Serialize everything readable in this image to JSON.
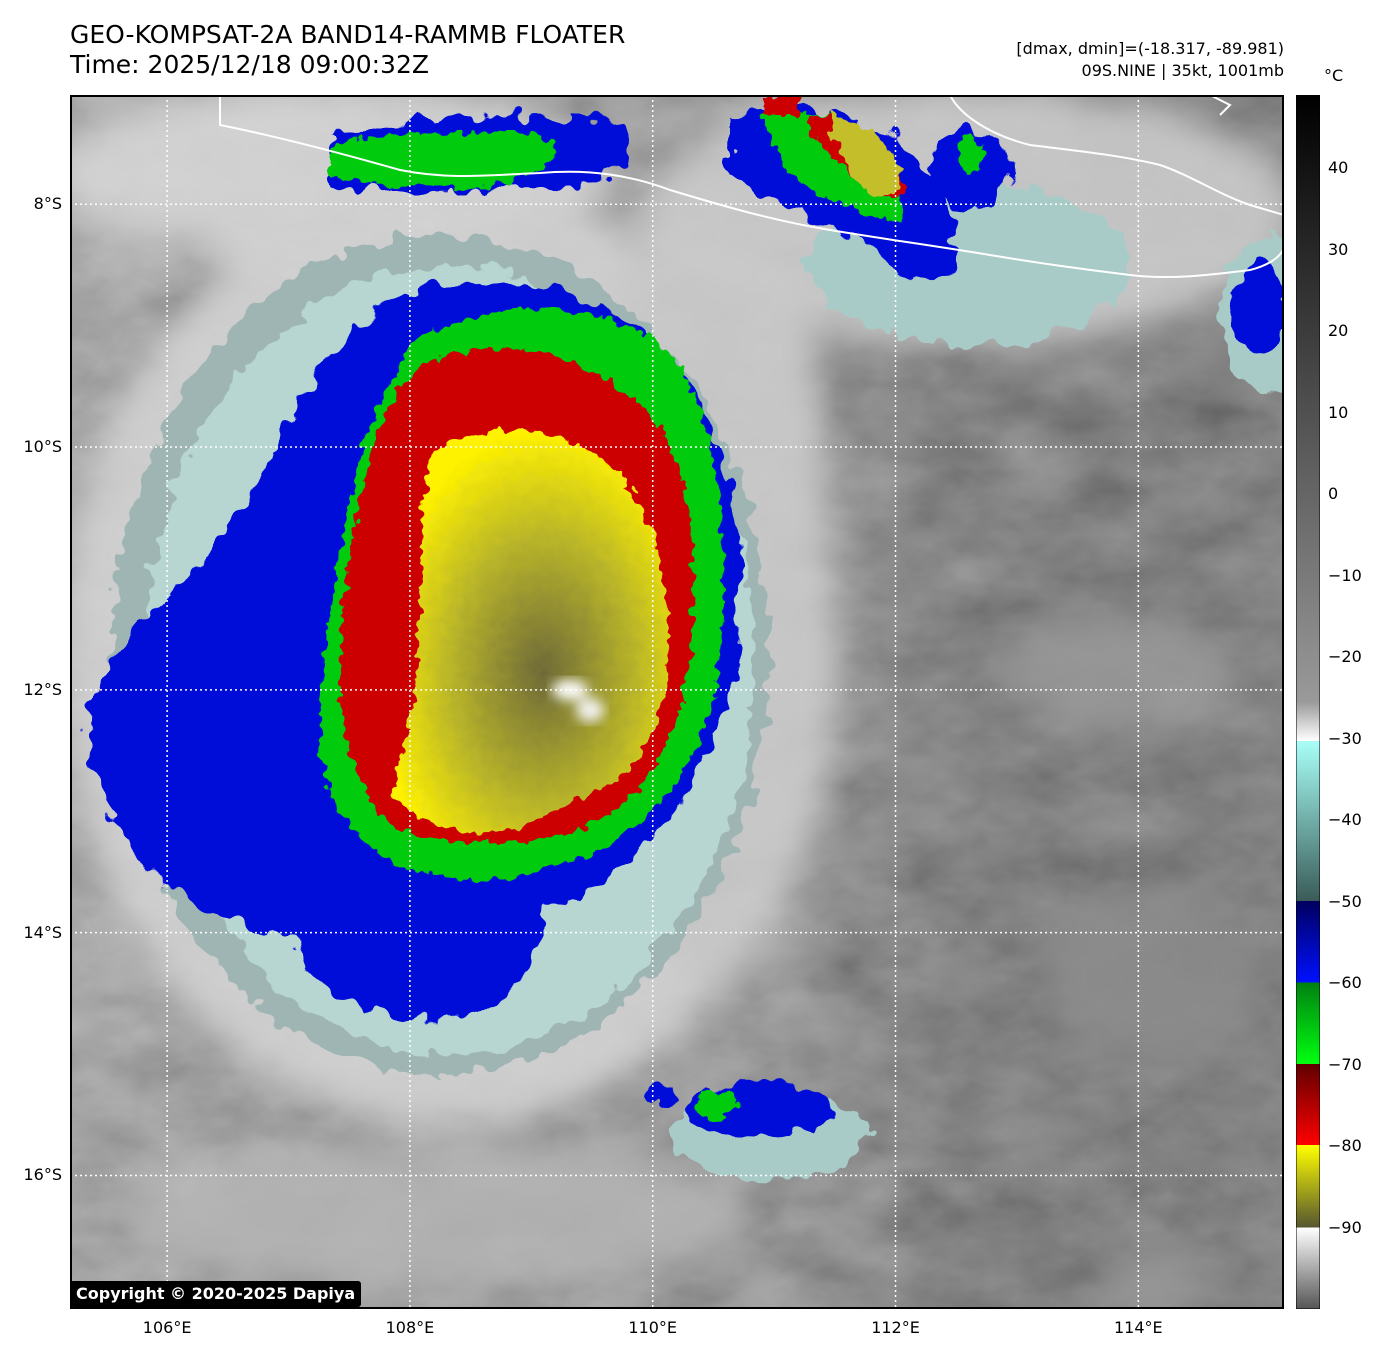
{
  "title": {
    "line1": "GEO-KOMPSAT-2A BAND14-RAMMB FLOATER",
    "line2": "Time: 2025/12/18 09:00:32Z"
  },
  "info": {
    "line1": "[dmax, dmin]=(-18.317, -89.981)",
    "line2": "09S.NINE | 35kt, 1001mb"
  },
  "map": {
    "lat_labels": [
      "8°S",
      "10°S",
      "12°S",
      "14°S",
      "16°S"
    ],
    "lon_labels": [
      "106°E",
      "108°E",
      "110°E",
      "112°E",
      "114°E"
    ],
    "lat_range": [
      -17.1,
      -7.1
    ],
    "lon_range": [
      105.2,
      115.2
    ],
    "storm_center": {
      "lat": -11.9,
      "lon": 109.2
    }
  },
  "colorbar": {
    "unit": "°C",
    "ticks": [
      "40",
      "30",
      "20",
      "10",
      "0",
      "−10",
      "−20",
      "−30",
      "−40",
      "−50",
      "−60",
      "−70",
      "−80",
      "−90"
    ],
    "range": [
      -100,
      49
    ],
    "colors": {
      "black": "#000000",
      "white": "#ffffff",
      "cyan": "#9ef7ee",
      "blue": "#0010d8",
      "green": "#00cc10",
      "red": "#cc0000",
      "yellow": "#fff200",
      "olive": "#555530"
    }
  },
  "copyright": "Copyright © 2020-2025 Dapiya"
}
